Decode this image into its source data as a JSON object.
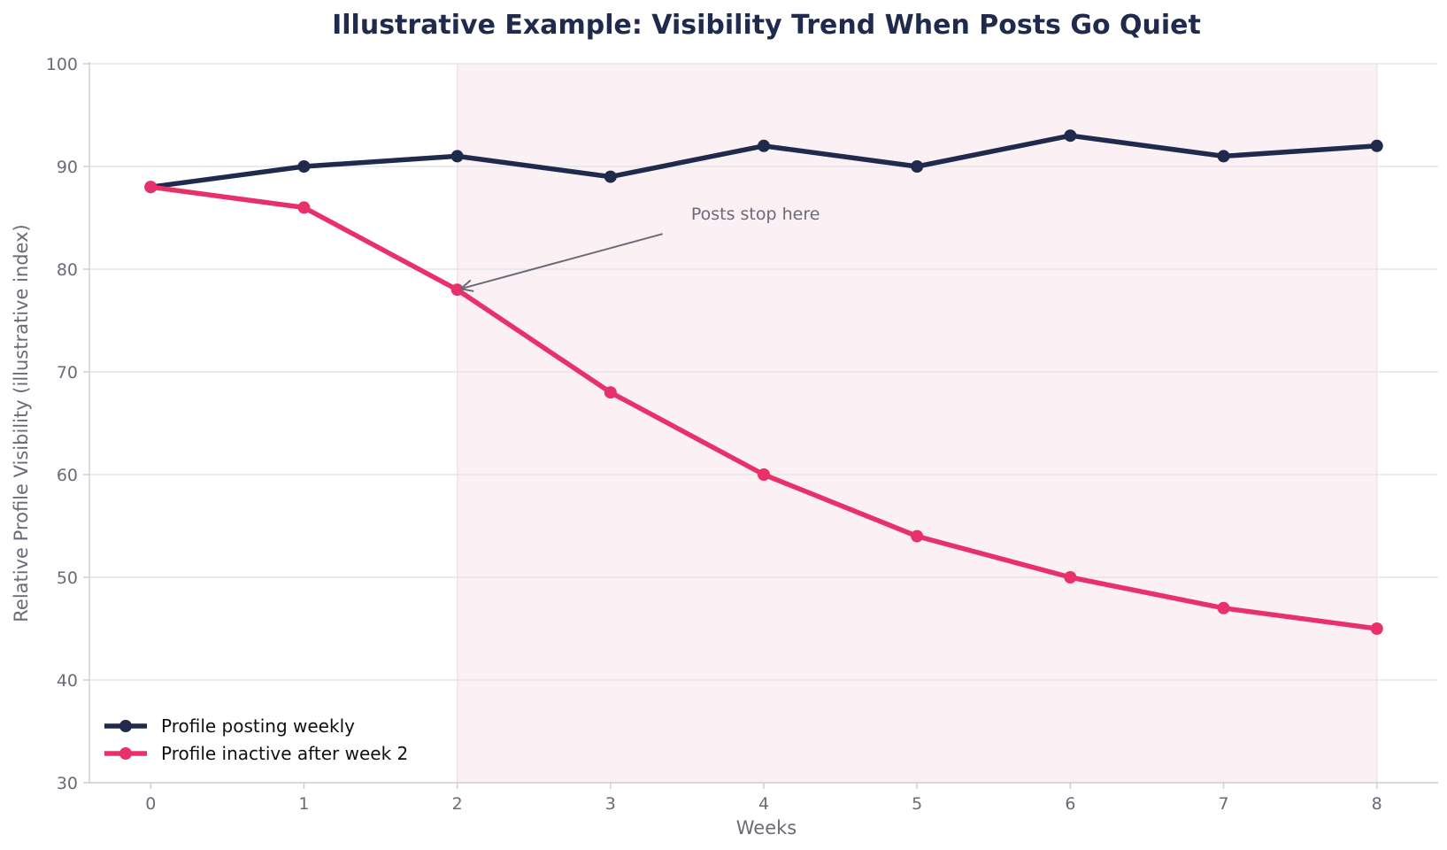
{
  "chart_data": {
    "type": "line",
    "title": "Illustrative Example: Visibility Trend When Posts Go Quiet",
    "xlabel": "Weeks",
    "ylabel": "Relative Profile Visibility (illustrative index)",
    "x": [
      0,
      1,
      2,
      3,
      4,
      5,
      6,
      7,
      8
    ],
    "xlim": [
      -0.4,
      8.4
    ],
    "ylim": [
      30,
      100
    ],
    "xticks": [
      "0",
      "1",
      "2",
      "3",
      "4",
      "5",
      "6",
      "7",
      "8"
    ],
    "yticks": [
      "30",
      "40",
      "50",
      "60",
      "70",
      "80",
      "90",
      "100"
    ],
    "grid": "horizontal",
    "legend_position": "lower-left",
    "shaded_region": {
      "x_start": 2,
      "x_end": 8,
      "color": "#fbf0f4"
    },
    "series": [
      {
        "name": "Profile posting weekly",
        "values": [
          88,
          90,
          91,
          89,
          92,
          90,
          93,
          91,
          92
        ],
        "color": "#1f2a4c"
      },
      {
        "name": "Profile inactive after week 2",
        "values": [
          88,
          86,
          78,
          68,
          60,
          54,
          50,
          47,
          45
        ],
        "color": "#e8306a"
      }
    ],
    "annotation": {
      "text": "Posts stop here",
      "point": [
        2,
        78
      ]
    }
  }
}
